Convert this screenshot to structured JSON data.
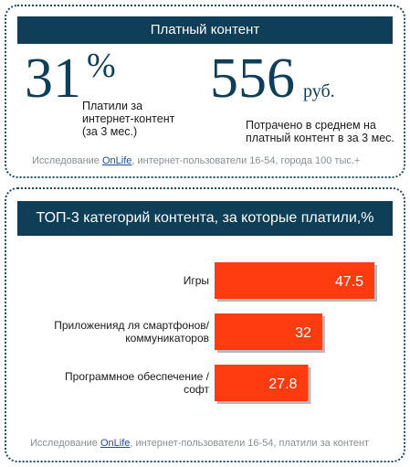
{
  "top_panel": {
    "header": "Платный контент",
    "stat1": {
      "value": "31",
      "unit": "%",
      "text": "Платили за интернет-контент (за 3 мес.)"
    },
    "stat2": {
      "value": "556",
      "unit": "руб.",
      "text": "Потрачено в среднем на платный контент в за 3 мес."
    },
    "source_prefix": "Исследование ",
    "source_link": "OnLife",
    "source_suffix": ", интернет-пользователи 16-54, города 100 тыс.+"
  },
  "bottom_panel": {
    "header": "ТОП-3 категорий контента, за которые платили,%",
    "source_prefix": "Исследование ",
    "source_link": "OnLife",
    "source_suffix": ", интернет-пользователи 16-54, платили за контент"
  },
  "chart_data": {
    "type": "bar",
    "orientation": "horizontal",
    "title": "ТОП-3 категорий контента, за которые платили,%",
    "categories": [
      "Игры",
      "Приложенияд ля смартфонов/ коммуникаторов",
      "Программное обеспечение / софт"
    ],
    "category_lines": [
      [
        "Игры"
      ],
      [
        "Приложенияд ля смартфонов/",
        "коммуникаторов"
      ],
      [
        "Программное обеспечение /",
        "софт"
      ]
    ],
    "values": [
      47.5,
      32,
      27.8
    ],
    "value_labels": [
      "47.5",
      "32",
      "27.8"
    ],
    "xlim": [
      0,
      47.5
    ],
    "bar_color": "#ff3b0f",
    "label_color": "#ffffff",
    "grid": false
  }
}
